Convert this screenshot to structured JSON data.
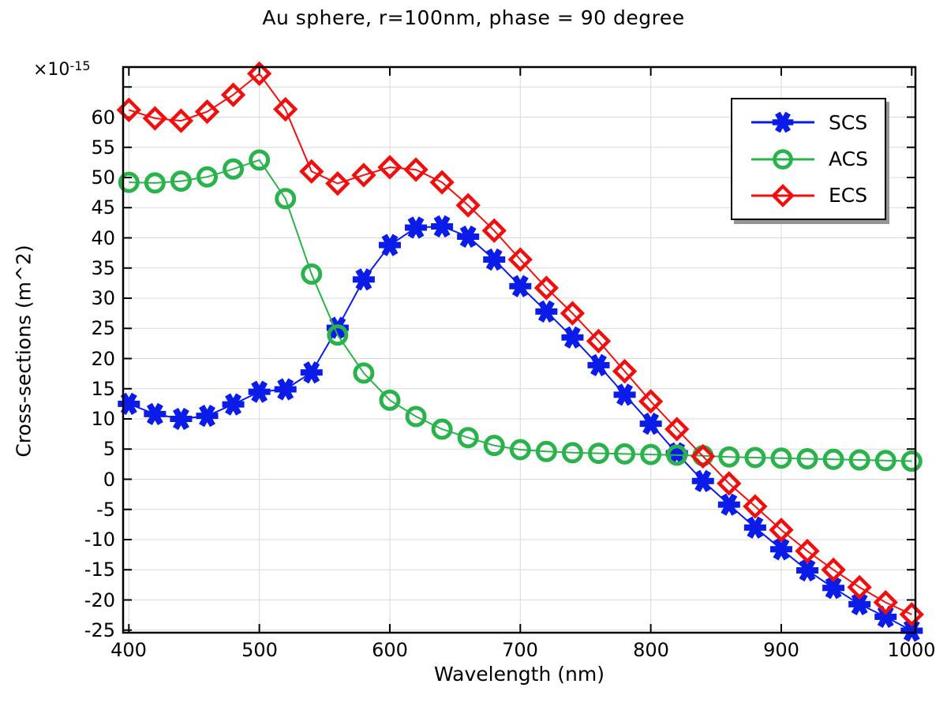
{
  "title": "Au sphere, r=100nm, phase = 90 degree",
  "legend": {
    "entries": [
      "SCS",
      "ACS",
      "ECS"
    ]
  },
  "chart_data": {
    "type": "line",
    "title": "Au sphere, r=100nm, phase = 90 degree",
    "xlabel": "Wavelength (nm)",
    "ylabel": "Cross-sections (m^2)",
    "y_multiplier_base": "×10",
    "y_multiplier_exp": "-15",
    "grid": true,
    "legend_position": "top-right",
    "xlim": [
      393.6,
      1002.4
    ],
    "ylim": [
      -25.5,
      68.1
    ],
    "x_tick_labels": [
      400,
      500,
      600,
      700,
      800,
      900,
      1000
    ],
    "y_tick_labels": [
      60,
      55,
      50,
      45,
      40,
      35,
      30,
      25,
      20,
      15,
      10,
      5,
      0,
      -5,
      -10,
      -15,
      -20,
      -25
    ],
    "y_unlabeled_ticks": [
      65
    ],
    "grid_color": "#d9d9d9",
    "axis_color": "#000000",
    "x": [
      400,
      420,
      440,
      460,
      480,
      500,
      520,
      540,
      560,
      580,
      600,
      620,
      640,
      660,
      680,
      700,
      720,
      740,
      760,
      780,
      800,
      820,
      840,
      860,
      880,
      900,
      920,
      940,
      960,
      980,
      1000
    ],
    "series": [
      {
        "name": "SCS",
        "marker": "asterisk",
        "color": "#0b1be8",
        "values": [
          12.5,
          10.8,
          10.0,
          10.5,
          12.4,
          14.5,
          14.9,
          17.7,
          25.1,
          33.1,
          38.8,
          41.7,
          41.9,
          40.2,
          36.4,
          32.0,
          27.8,
          23.5,
          18.9,
          14.0,
          9.2,
          4.3,
          -0.3,
          -4.2,
          -8.0,
          -11.6,
          -15.1,
          -18.0,
          -20.7,
          -22.8,
          -25.1
        ]
      },
      {
        "name": "ACS",
        "marker": "circle",
        "color": "#2bb24c",
        "values": [
          49.2,
          49.1,
          49.4,
          50.1,
          51.4,
          52.9,
          46.5,
          34.0,
          23.9,
          17.6,
          13.1,
          10.4,
          8.3,
          6.9,
          5.6,
          4.9,
          4.6,
          4.4,
          4.3,
          4.2,
          4.1,
          4.0,
          3.9,
          3.7,
          3.6,
          3.5,
          3.4,
          3.3,
          3.2,
          3.1,
          3.0
        ]
      },
      {
        "name": "ECS",
        "marker": "diamond",
        "color": "#ef0f0f",
        "values": [
          61.2,
          59.8,
          59.4,
          60.9,
          63.7,
          67.2,
          61.3,
          51.0,
          49.0,
          50.4,
          51.7,
          51.3,
          49.2,
          45.4,
          41.2,
          36.4,
          31.7,
          27.5,
          22.9,
          17.9,
          12.9,
          8.3,
          3.8,
          -0.7,
          -4.5,
          -8.4,
          -11.9,
          -15.0,
          -17.9,
          -20.4,
          -22.4
        ]
      }
    ]
  }
}
